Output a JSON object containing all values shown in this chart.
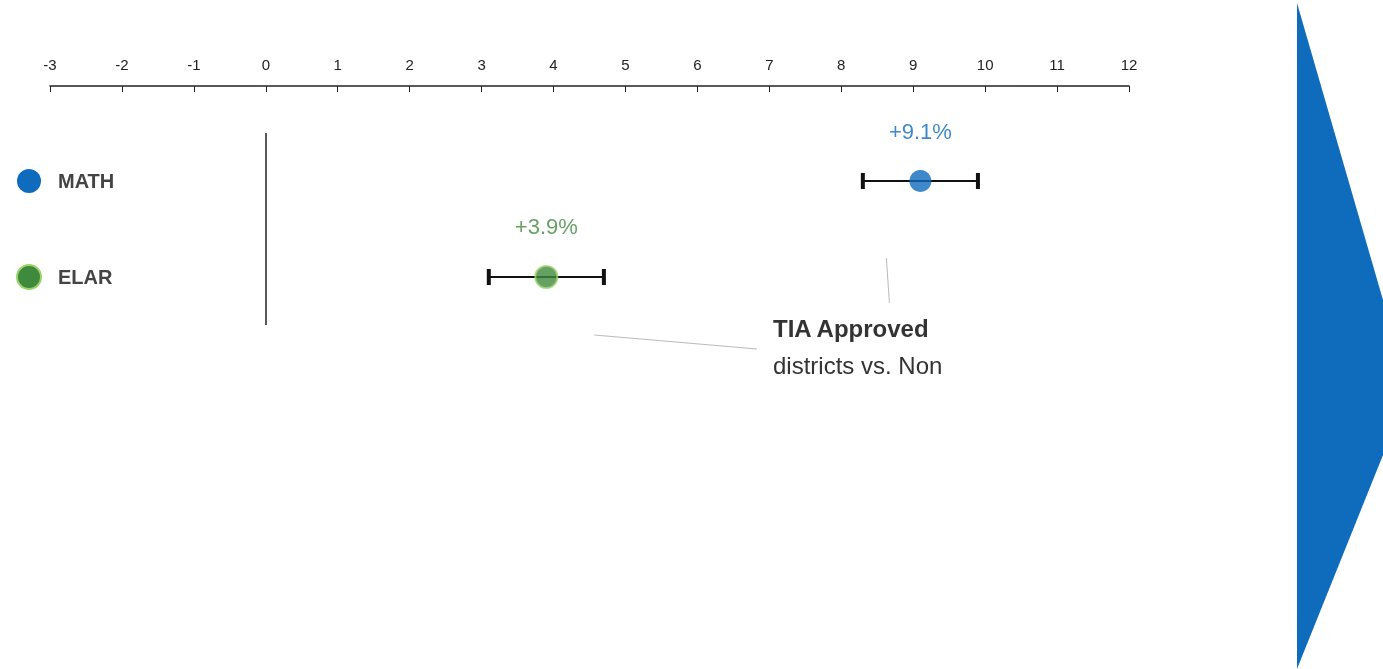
{
  "chart_data": {
    "type": "scatter",
    "orientation": "horizontal",
    "categories": [
      "MATH",
      "ELAR"
    ],
    "values": [
      9.1,
      3.9
    ],
    "colors": [
      "#0f6cbd",
      "#3f8a3c"
    ],
    "errors": [
      [
        8.3,
        9.9
      ],
      [
        3.1,
        4.7
      ]
    ],
    "value_labels": [
      "+9.1%",
      "+3.9%"
    ],
    "xlim": [
      -3,
      12
    ],
    "xticks": [
      -3,
      -2,
      -1,
      0,
      1,
      2,
      3,
      4,
      5,
      6,
      7,
      8,
      9,
      10,
      11,
      12
    ],
    "grid": false,
    "marker": "circle",
    "ref_lines": [
      {
        "axis": "x",
        "value": 0,
        "color": "#222222"
      }
    ],
    "annotations": [
      "TIA Approved",
      "districts vs. Non"
    ]
  }
}
